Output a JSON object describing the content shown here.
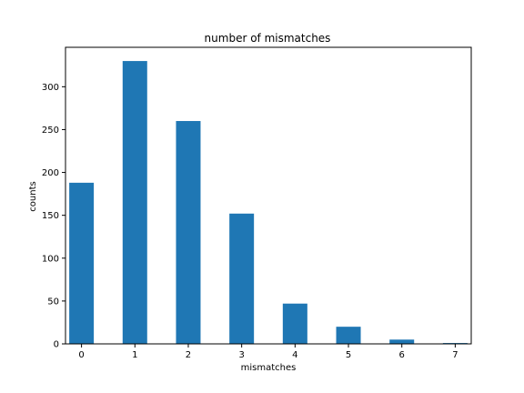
{
  "chart_data": {
    "type": "bar",
    "title": "number of mismatches",
    "xlabel": "mismatches",
    "ylabel": "counts",
    "categories": [
      0,
      1,
      2,
      3,
      4,
      5,
      6,
      7
    ],
    "values": [
      188,
      330,
      260,
      152,
      47,
      20,
      5,
      1
    ],
    "xlim": [
      -0.3,
      7.3
    ],
    "ylim": [
      0,
      346
    ],
    "xticks": [
      0,
      1,
      2,
      3,
      4,
      5,
      6,
      7
    ],
    "yticks": [
      0,
      50,
      100,
      150,
      200,
      250,
      300
    ],
    "bar_color": "#1f77b4",
    "grid": false,
    "legend": "none"
  }
}
